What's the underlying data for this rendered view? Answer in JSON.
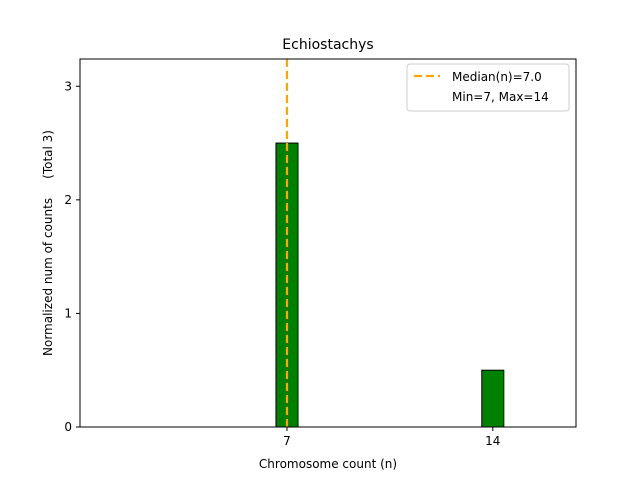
{
  "chart_data": {
    "type": "bar",
    "title": "Echiostachys",
    "xlabel": "Chromosome count (n)",
    "ylabel": "Normalized num of counts     (Total 3)",
    "x": [
      7,
      14
    ],
    "values": [
      2.5,
      0.5
    ],
    "bar_width": 0.75,
    "xlim": [
      -0.04,
      16.83
    ],
    "ylim": [
      0,
      3.24
    ],
    "xticks": [
      7,
      14
    ],
    "yticks": [
      0,
      1,
      2,
      3
    ],
    "bar_color": "#008000",
    "median": 7.0,
    "median_color": "#FFA500",
    "legend": {
      "placement": "top-right",
      "entries": [
        "Median(n)=7.0",
        "Min=7, Max=14"
      ]
    },
    "grid": false
  }
}
